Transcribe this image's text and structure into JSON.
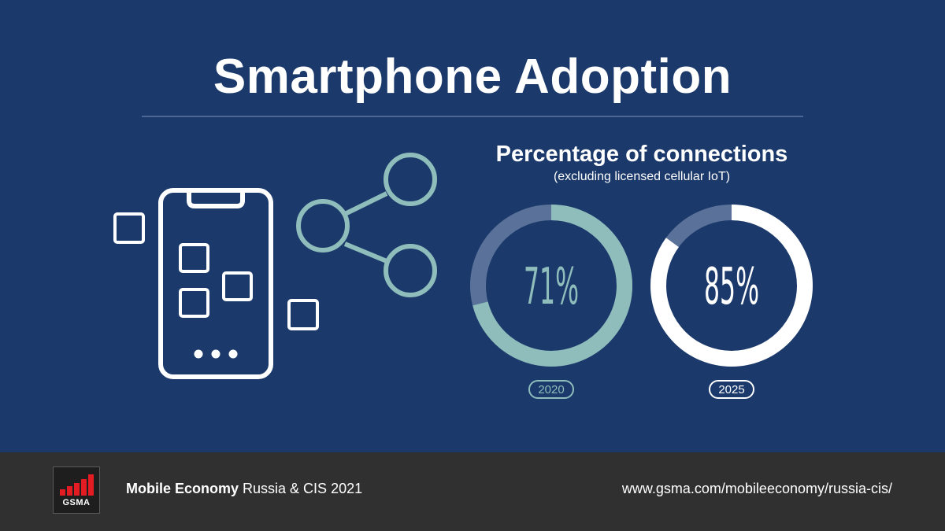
{
  "title": "Smartphone Adoption",
  "colors": {
    "background": "#1b3a6b",
    "footer": "#303030",
    "teal": "#8fbdbb",
    "track": "#5a7199",
    "white": "#ffffff",
    "gsma_red": "#e31b23"
  },
  "chart_data": {
    "type": "pie",
    "title": "Percentage of connections",
    "subtitle": "(excluding licensed cellular IoT)",
    "unit": "%",
    "series": [
      {
        "name": "2020",
        "value": 71,
        "label": "71%",
        "color": "#8fbdbb"
      },
      {
        "name": "2025",
        "value": 85,
        "label": "85%",
        "color": "#ffffff"
      }
    ]
  },
  "illustration": {
    "icons": [
      "smartphone-icon",
      "share-icon",
      "app-square-icon"
    ]
  },
  "footer": {
    "logo_text": "GSMA",
    "publication_bold": "Mobile Economy",
    "publication_rest": "Russia & CIS 2021",
    "url": "www.gsma.com/mobileeconomy/russia-cis/"
  }
}
